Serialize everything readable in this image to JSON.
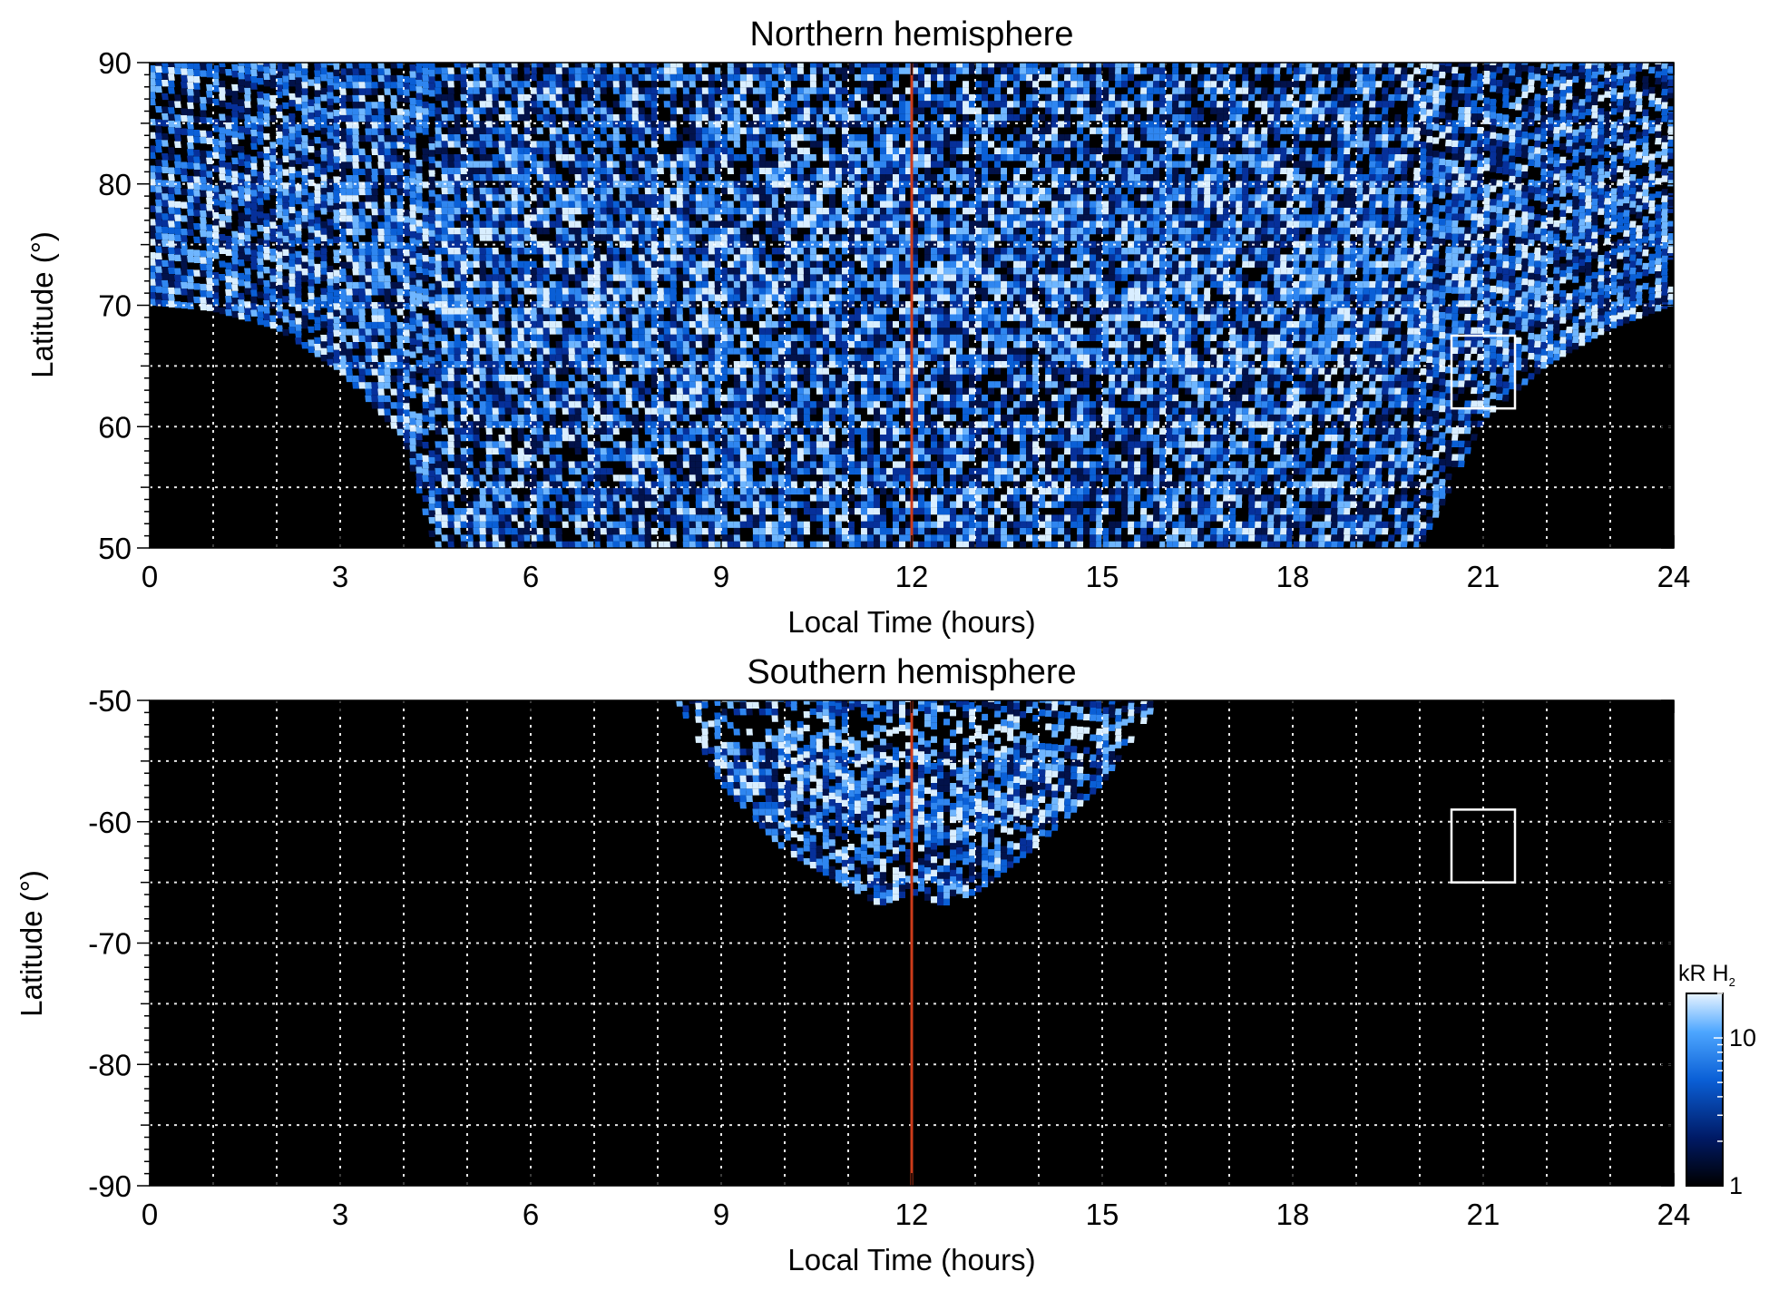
{
  "chart_data": [
    {
      "type": "heatmap",
      "title": "Northern hemisphere",
      "xlabel": "Local Time (hours)",
      "ylabel": "Latitude (°)",
      "xlim": [
        0,
        24
      ],
      "ylim": [
        50,
        90
      ],
      "xticks": [
        0,
        3,
        6,
        9,
        12,
        15,
        18,
        21,
        24
      ],
      "xtick_labels": [
        "0",
        "3",
        "6",
        "9",
        "12",
        "15",
        "18",
        "21",
        "24"
      ],
      "yticks": [
        50,
        60,
        70,
        80,
        90
      ],
      "ytick_labels": [
        "50",
        "60",
        "70",
        "80",
        "90"
      ],
      "grid": true,
      "grid_x": [
        1,
        2,
        3,
        4,
        5,
        6,
        7,
        8,
        9,
        10,
        11,
        12,
        13,
        14,
        15,
        16,
        17,
        18,
        19,
        20,
        21,
        22,
        23
      ],
      "grid_y": [
        55,
        60,
        65,
        70,
        75,
        80,
        85
      ],
      "reference_line": {
        "x": 12,
        "color": "#cc3b1a"
      },
      "box": {
        "x0": 20.5,
        "x1": 21.5,
        "y0": 61.5,
        "y1": 67.5
      },
      "coverage_boundary": {
        "lt": [
          0,
          1,
          2,
          3,
          4,
          4.5,
          5,
          6,
          8,
          10,
          12,
          14,
          16,
          18,
          19,
          20,
          20.5,
          21,
          22,
          23,
          24
        ],
        "lat": [
          70,
          69.5,
          68,
          64.5,
          59,
          50,
          50,
          50,
          50,
          50,
          50,
          50,
          50,
          50,
          50,
          50,
          55,
          60.5,
          65,
          68,
          70
        ]
      },
      "bright_band_lat": [
        64,
        80
      ]
    },
    {
      "type": "heatmap",
      "title": "Southern hemisphere",
      "xlabel": "Local Time (hours)",
      "ylabel": "Latitude (°)",
      "xlim": [
        0,
        24
      ],
      "ylim": [
        -90,
        -50
      ],
      "xticks": [
        0,
        3,
        6,
        9,
        12,
        15,
        18,
        21,
        24
      ],
      "xtick_labels": [
        "0",
        "3",
        "6",
        "9",
        "12",
        "15",
        "18",
        "21",
        "24"
      ],
      "yticks": [
        -90,
        -80,
        -70,
        -60,
        -50
      ],
      "ytick_labels": [
        "-90",
        "-80",
        "-70",
        "-60",
        "-50"
      ],
      "grid": true,
      "grid_x": [
        1,
        2,
        3,
        4,
        5,
        6,
        7,
        8,
        9,
        10,
        11,
        12,
        13,
        14,
        15,
        16,
        17,
        18,
        19,
        20,
        21,
        22,
        23
      ],
      "grid_y": [
        -85,
        -80,
        -75,
        -70,
        -65,
        -60,
        -55
      ],
      "reference_line": {
        "x": 12,
        "color": "#cc3b1a"
      },
      "box": {
        "x0": 20.5,
        "x1": 21.5,
        "y0": -65,
        "y1": -59
      },
      "coverage_boundary": {
        "lt": [
          8.3,
          9,
          10,
          11,
          11.5,
          12,
          12.5,
          13,
          14,
          15,
          15.9
        ],
        "lat": [
          -50,
          -57,
          -62.5,
          -65.5,
          -67,
          -66,
          -67,
          -66,
          -62,
          -57,
          -50
        ]
      },
      "bright_band_lat": [
        -60,
        -52
      ]
    }
  ],
  "colorbar": {
    "label": "kR H",
    "label_sub": "2",
    "scale": "log",
    "range": [
      1,
      20
    ],
    "ticks": [
      1,
      10
    ],
    "tick_labels": [
      "1",
      "10"
    ],
    "colors": [
      "#000000",
      "#001a66",
      "#0a5fd6",
      "#4da6ff",
      "#e8f4ff"
    ]
  },
  "colors": {
    "background": "#000000",
    "grid": "#ffffff",
    "reference_line": "#cc3b1a",
    "box": "#ffffff",
    "axis": "#000000"
  }
}
